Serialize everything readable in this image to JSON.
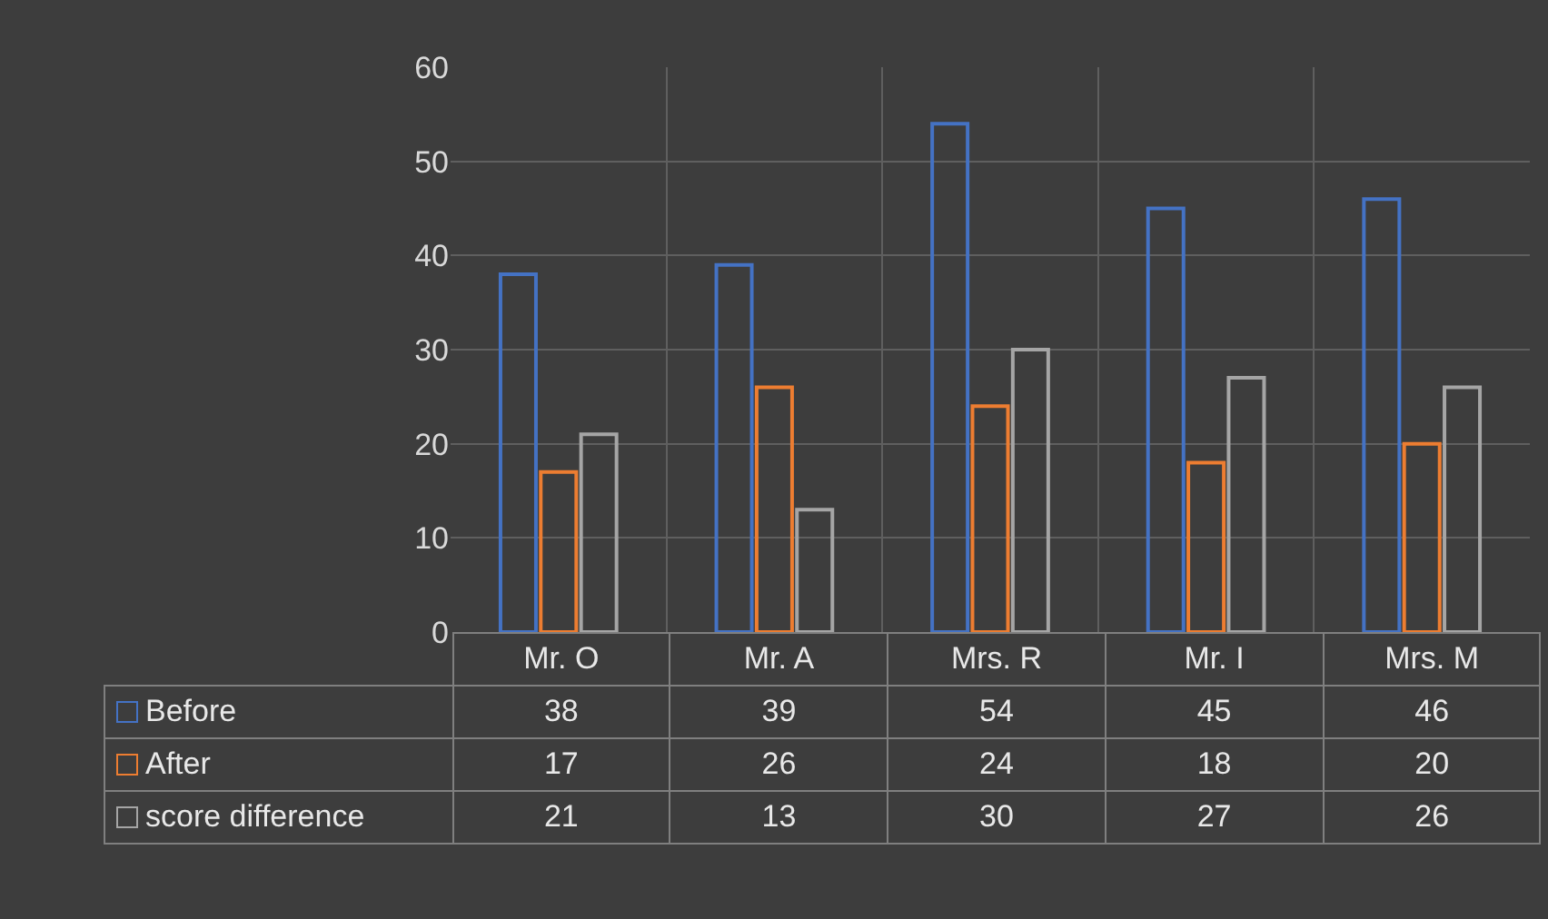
{
  "chart_data": {
    "type": "bar",
    "categories": [
      "Mr. O",
      "Mr. A",
      "Mrs. R",
      "Mr. I",
      "Mrs. M"
    ],
    "series": [
      {
        "name": "Before",
        "color": "#4472c4",
        "values": [
          38,
          39,
          54,
          45,
          46
        ]
      },
      {
        "name": "After",
        "color": "#ed7d31",
        "values": [
          17,
          26,
          24,
          18,
          20
        ]
      },
      {
        "name": "score difference",
        "color": "#a5a5a5",
        "values": [
          21,
          13,
          30,
          27,
          26
        ]
      }
    ],
    "ylim": [
      0,
      60
    ],
    "yticks": [
      0,
      10,
      20,
      30,
      40,
      50,
      60
    ],
    "grid": true,
    "legend": "bottom",
    "data_labels": true
  }
}
